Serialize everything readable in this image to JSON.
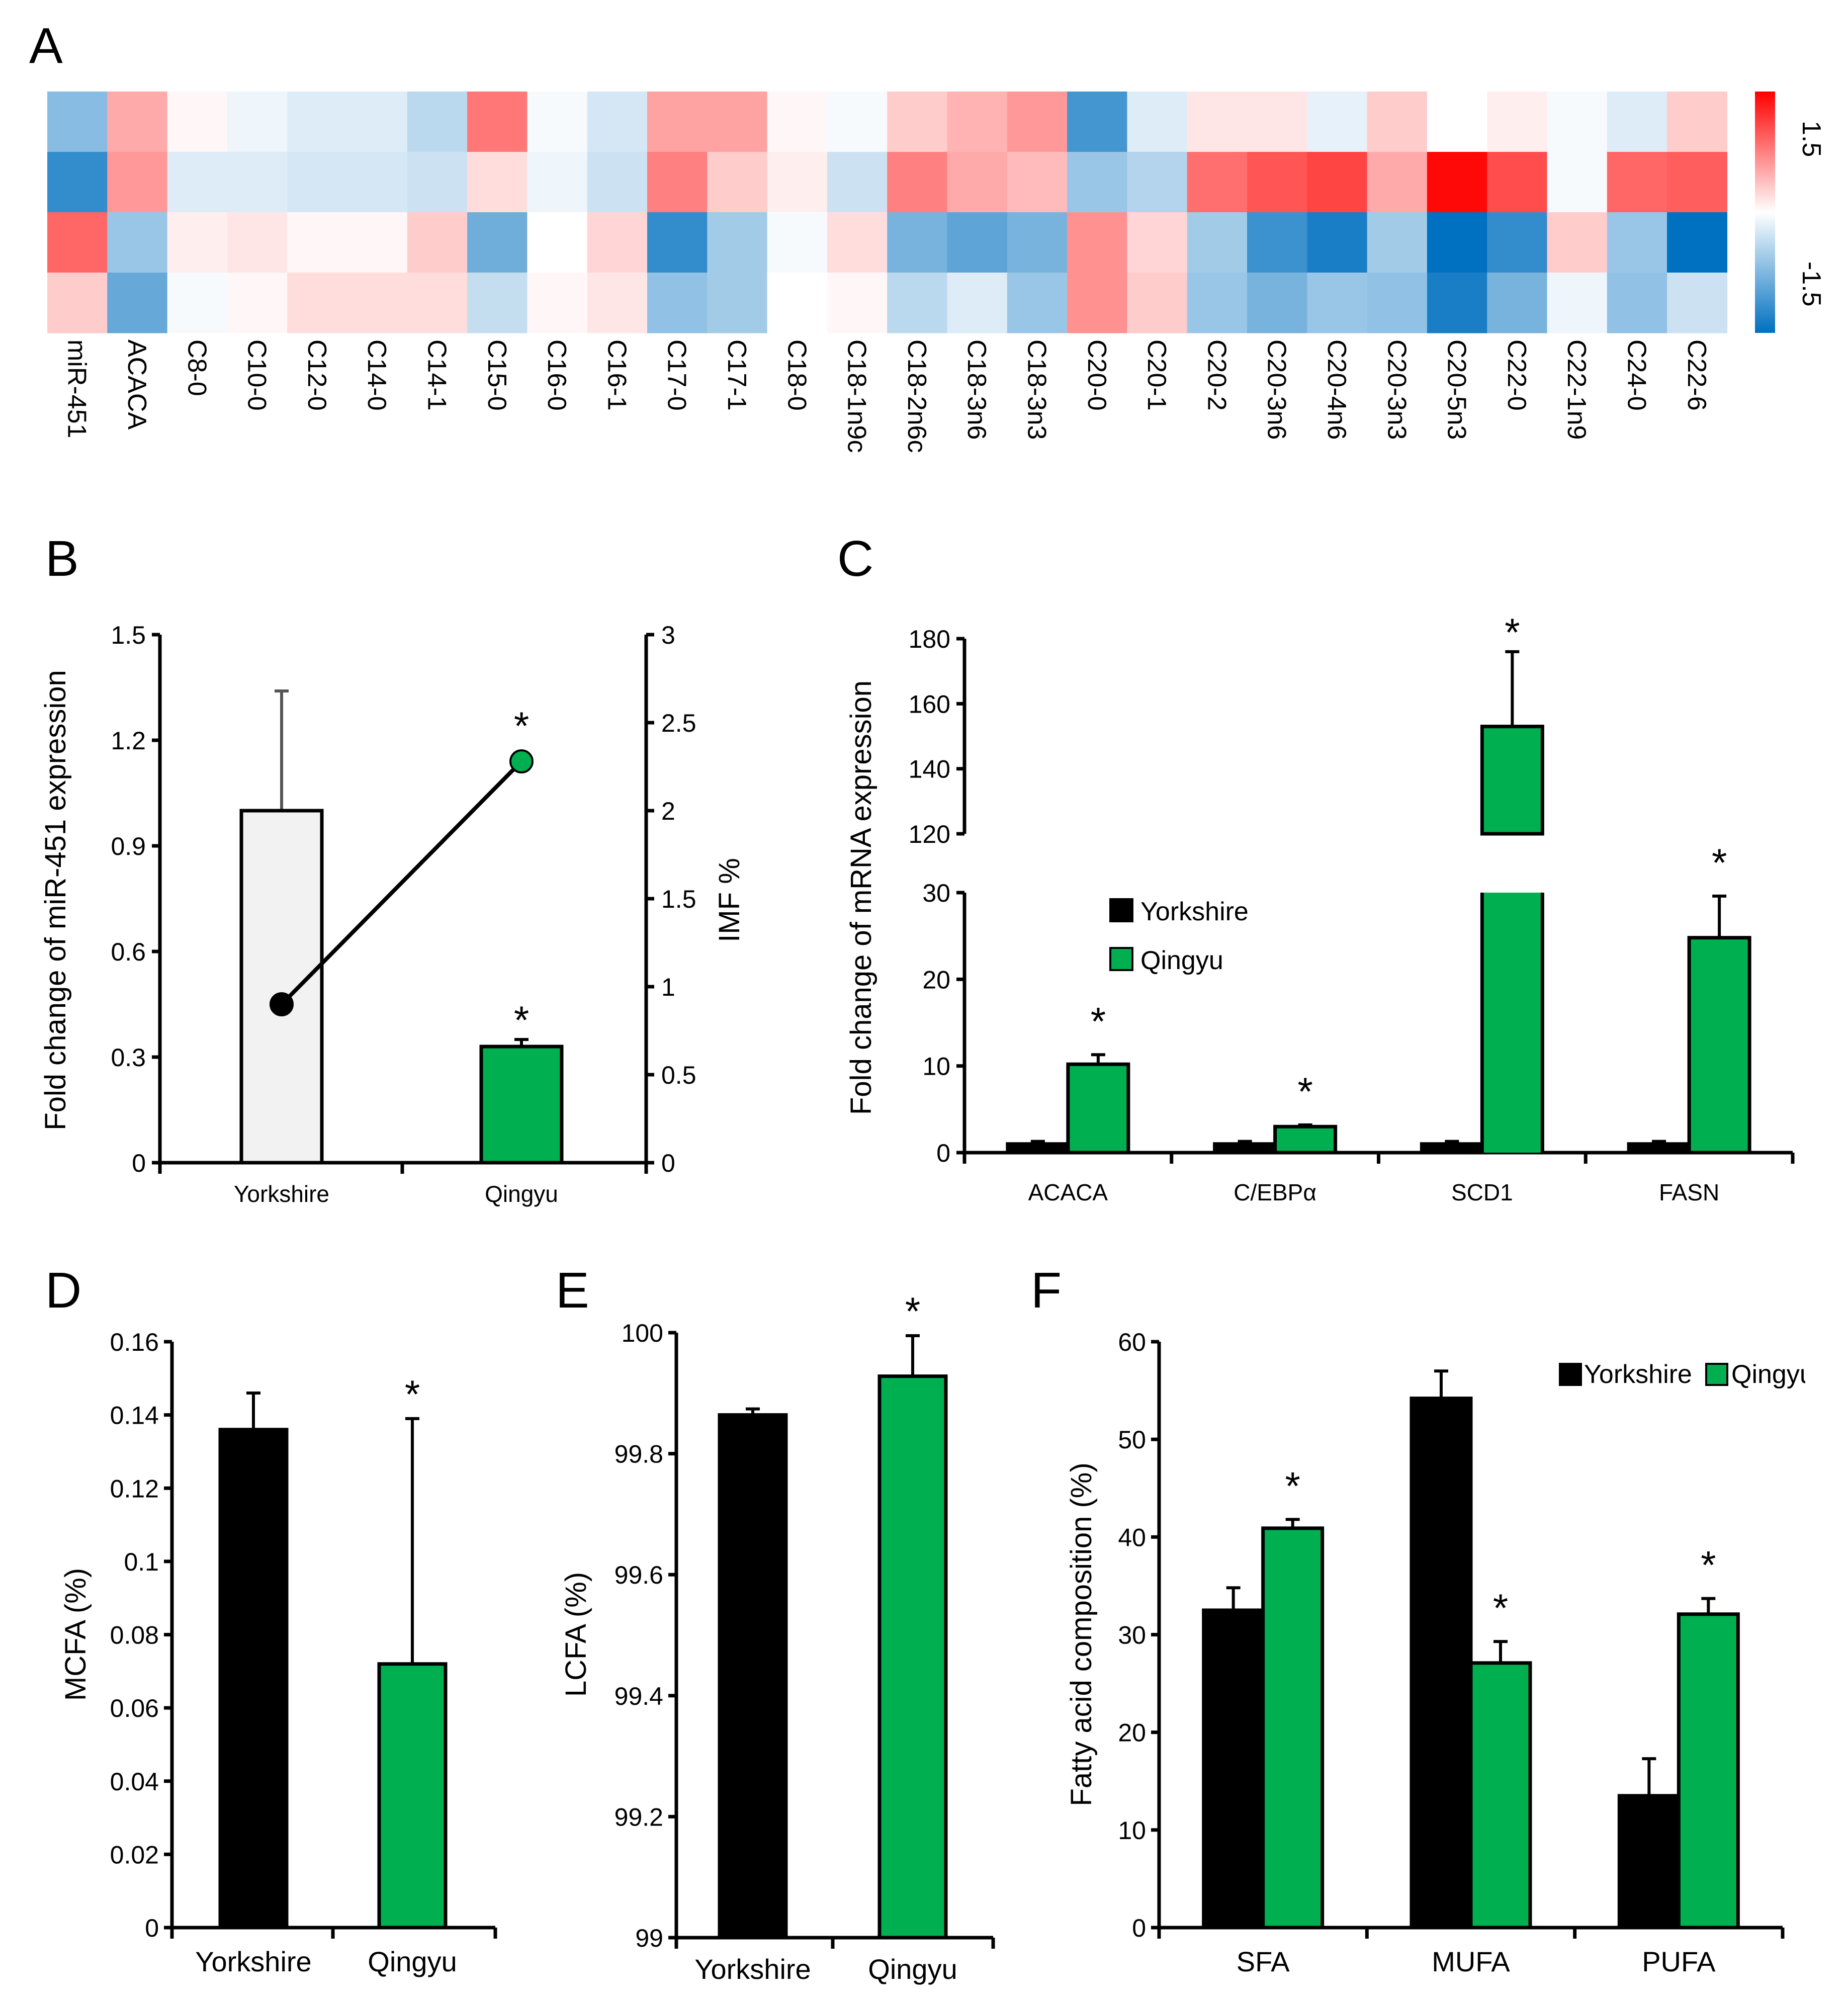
{
  "colors": {
    "yorkshire": "#000000",
    "qingyu": "#00B050",
    "light_bar": "#F2F2F2",
    "heat_low": "#0070C0",
    "heat_mid": "#FFFFFF",
    "heat_high": "#FF0000"
  },
  "chart_data": [
    {
      "panel": "A",
      "type": "heatmap",
      "columns": [
        "miR-451",
        "ACACA",
        "C8-0",
        "C10-0",
        "C12-0",
        "C14-0",
        "C14-1",
        "C15-0",
        "C16-0",
        "C16-1",
        "C17-0",
        "C17-1",
        "C18-0",
        "C18-1n9c",
        "C18-2n6c",
        "C18-3n6",
        "C18-3n3",
        "C20-0",
        "C20-1",
        "C20-2",
        "C20-3n6",
        "C20-4n6",
        "C20-3n3",
        "C20-5n3",
        "C22-0",
        "C22-1n9",
        "C24-0",
        "C22-6"
      ],
      "rows": 4,
      "values": [
        [
          -0.7,
          0.5,
          0.05,
          -0.1,
          -0.2,
          -0.2,
          -0.4,
          0.8,
          -0.05,
          -0.25,
          0.55,
          0.55,
          0.05,
          -0.05,
          0.3,
          0.45,
          0.6,
          -1.1,
          -0.2,
          0.15,
          0.15,
          -0.15,
          0.3,
          0.0,
          0.1,
          -0.05,
          -0.2,
          0.3
        ],
        [
          -1.2,
          0.6,
          -0.2,
          -0.2,
          -0.25,
          -0.25,
          -0.3,
          0.2,
          -0.1,
          -0.3,
          0.75,
          0.3,
          0.1,
          -0.3,
          0.75,
          0.5,
          0.4,
          -0.6,
          -0.45,
          0.85,
          1.0,
          1.1,
          0.5,
          1.45,
          1.05,
          -0.05,
          0.9,
          0.95
        ],
        [
          0.9,
          -0.6,
          0.1,
          0.15,
          0.05,
          0.05,
          0.3,
          -0.85,
          0.0,
          0.25,
          -1.2,
          -0.55,
          -0.05,
          0.2,
          -0.8,
          -0.95,
          -0.8,
          0.65,
          0.25,
          -0.55,
          -1.15,
          -1.35,
          -0.55,
          -1.5,
          -1.2,
          0.3,
          -0.6,
          -1.5
        ],
        [
          0.3,
          -0.9,
          -0.05,
          0.05,
          0.2,
          0.2,
          0.2,
          -0.35,
          0.05,
          0.15,
          -0.65,
          -0.55,
          0.0,
          0.05,
          -0.4,
          -0.2,
          -0.6,
          0.65,
          0.3,
          -0.6,
          -0.8,
          -0.6,
          -0.65,
          -1.35,
          -0.8,
          -0.1,
          -0.65,
          -0.3
        ]
      ],
      "color_scale": {
        "min": -1.5,
        "max": 1.5,
        "min_label": "-1.5",
        "max_label": "1.5"
      }
    },
    {
      "panel": "B",
      "type": "bar",
      "categories": [
        "Yorkshire",
        "Qingyu"
      ],
      "bar_values": [
        1.0,
        0.33
      ],
      "bar_errors": [
        0.34,
        0.02
      ],
      "bar_significance": [
        "",
        "*"
      ],
      "line_values": [
        0.9,
        2.28
      ],
      "line_significance": [
        "",
        "*"
      ],
      "ylabel": "Fold change of miR-451 expression",
      "ylabel_right": "IMF %",
      "ylim": [
        0,
        1.5
      ],
      "ylim_right": [
        0,
        3
      ],
      "yticks": [
        "0",
        "0.3",
        "0.6",
        "0.9",
        "1.2",
        "1.5"
      ],
      "yticks_right": [
        "0",
        "0.5",
        "1",
        "1.5",
        "2",
        "2.5",
        "3"
      ]
    },
    {
      "panel": "C",
      "type": "bar",
      "categories": [
        "ACACA",
        "C/EBPα",
        "SCD1",
        "FASN"
      ],
      "series": [
        {
          "name": "Yorkshire",
          "values": [
            1,
            1,
            1,
            1
          ],
          "errors": [
            0.3,
            0.3,
            0.3,
            0.3
          ]
        },
        {
          "name": "Qingyu",
          "values": [
            10.2,
            3.0,
            153,
            24.8
          ],
          "errors": [
            1.1,
            0.2,
            23,
            4.8
          ],
          "significance": [
            "*",
            "*",
            "*",
            "*"
          ]
        }
      ],
      "ylabel": "Fold change of mRNA expression",
      "broken_axis": {
        "lower_range": [
          0,
          30
        ],
        "upper_range": [
          120,
          180
        ]
      },
      "yticks_lower": [
        "0",
        "10",
        "20",
        "30"
      ],
      "yticks_upper": [
        "120",
        "140",
        "160",
        "180"
      ],
      "legend_position": "center-left"
    },
    {
      "panel": "D",
      "type": "bar",
      "categories": [
        "Yorkshire",
        "Qingyu"
      ],
      "values": [
        0.136,
        0.072
      ],
      "errors": [
        0.01,
        0.067
      ],
      "significance": [
        "",
        "*"
      ],
      "ylabel": "MCFA (%)",
      "ylim": [
        0,
        0.16
      ],
      "yticks": [
        "0",
        "0.02",
        "0.04",
        "0.06",
        "0.08",
        "0.1",
        "0.12",
        "0.14",
        "0.16"
      ]
    },
    {
      "panel": "E",
      "type": "bar",
      "categories": [
        "Yorkshire",
        "Qingyu"
      ],
      "values": [
        99.864,
        99.928
      ],
      "errors": [
        0.01,
        0.067
      ],
      "significance": [
        "",
        "*"
      ],
      "ylabel": "LCFA (%)",
      "ylim": [
        99,
        100
      ],
      "yticks": [
        "99",
        "99.2",
        "99.4",
        "99.6",
        "99.8",
        "100"
      ]
    },
    {
      "panel": "F",
      "type": "bar",
      "categories": [
        "SFA",
        "MUFA",
        "PUFA"
      ],
      "series": [
        {
          "name": "Yorkshire",
          "values": [
            32.5,
            54.2,
            13.5
          ],
          "errors": [
            2.3,
            2.8,
            3.8
          ]
        },
        {
          "name": "Qingyu",
          "values": [
            40.9,
            27.1,
            32.1
          ],
          "errors": [
            0.9,
            2.2,
            1.6
          ],
          "significance": [
            "*",
            "*",
            "*"
          ]
        }
      ],
      "ylabel": "Fatty acid composition (%)",
      "ylim": [
        0,
        60
      ],
      "yticks": [
        "0",
        "10",
        "20",
        "30",
        "40",
        "50",
        "60"
      ],
      "legend_position": "top-right"
    }
  ],
  "panels": {
    "a": "A",
    "b": "B",
    "c": "C",
    "d": "D",
    "e": "E",
    "f": "F"
  },
  "legend": {
    "yorkshire": "Yorkshire",
    "qingyu": "Qingyu",
    "qingyu_truncated": "Qingyu"
  },
  "significance_mark": "*"
}
